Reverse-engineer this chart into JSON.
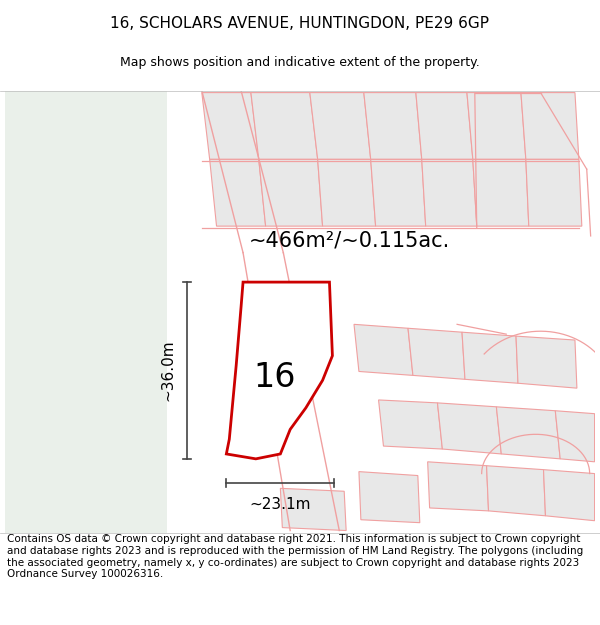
{
  "title": "16, SCHOLARS AVENUE, HUNTINGDON, PE29 6GP",
  "subtitle": "Map shows position and indicative extent of the property.",
  "footer": "Contains OS data © Crown copyright and database right 2021. This information is subject to Crown copyright and database rights 2023 and is reproduced with the permission of HM Land Registry. The polygons (including the associated geometry, namely x, y co-ordinates) are subject to Crown copyright and database rights 2023 Ordnance Survey 100026316.",
  "area_label": "~466m²/~0.115ac.",
  "width_label": "~23.1m",
  "height_label": "~36.0m",
  "property_number": "16",
  "bg_left_color": "#eaf0ea",
  "map_bg": "#ffffff",
  "highlight_color": "#cc0000",
  "nearby_stroke": "#f0a0a0",
  "nearby_fill": "#e8e8e8",
  "title_fontsize": 11,
  "subtitle_fontsize": 9,
  "footer_fontsize": 7.5,
  "area_fontsize": 15,
  "number_fontsize": 24,
  "dim_fontsize": 11
}
